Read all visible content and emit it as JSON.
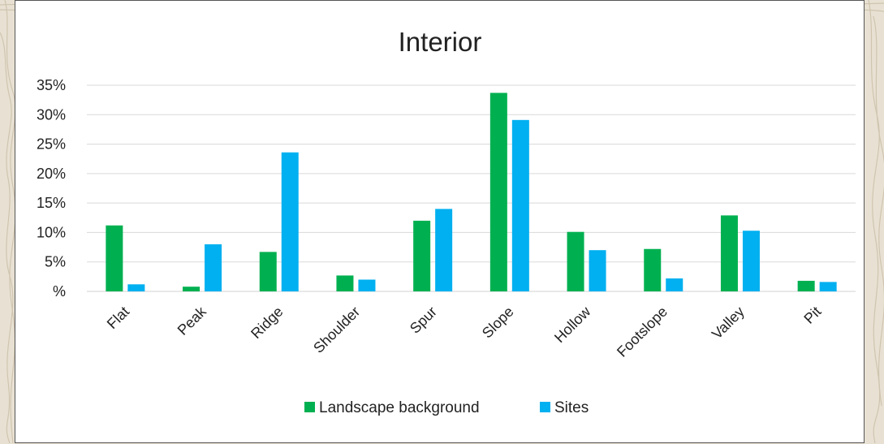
{
  "chart_data": {
    "type": "bar",
    "title": "Interior",
    "xlabel": "",
    "ylabel": "",
    "categories": [
      "Flat",
      "Peak",
      "Ridge",
      "Shoulder",
      "Spur",
      "Slope",
      "Hollow",
      "Footslope",
      "Valley",
      "Pit"
    ],
    "series": [
      {
        "name": "Landscape background",
        "color": "#00b050",
        "values": [
          11.2,
          0.8,
          6.7,
          2.7,
          12.0,
          33.7,
          10.1,
          7.2,
          12.9,
          1.8
        ]
      },
      {
        "name": "Sites",
        "color": "#00b0f0",
        "values": [
          1.2,
          8.0,
          23.6,
          2.0,
          14.0,
          29.1,
          7.0,
          2.2,
          10.3,
          1.6
        ]
      }
    ],
    "yticks": [
      "%",
      "5%",
      "10%",
      "15%",
      "20%",
      "25%",
      "30%",
      "35%"
    ],
    "ylim": [
      0,
      35
    ],
    "grid": true,
    "legend_position": "bottom"
  }
}
